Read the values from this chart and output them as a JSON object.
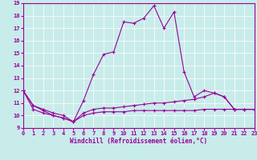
{
  "background_color": "#c8ecea",
  "line_color": "#990099",
  "xlabel": "Windchill (Refroidissement éolien,°C)",
  "xlim": [
    0,
    23
  ],
  "ylim": [
    9,
    19
  ],
  "xticks": [
    0,
    1,
    2,
    3,
    4,
    5,
    6,
    7,
    8,
    9,
    10,
    11,
    12,
    13,
    14,
    15,
    16,
    17,
    18,
    19,
    20,
    21,
    22,
    23
  ],
  "yticks": [
    9,
    10,
    11,
    12,
    13,
    14,
    15,
    16,
    17,
    18,
    19
  ],
  "series1_y": [
    12,
    10.8,
    10.5,
    10.2,
    10.0,
    9.5,
    11.2,
    13.3,
    14.9,
    15.1,
    17.5,
    17.4,
    17.8,
    18.8,
    17.0,
    18.3,
    13.5,
    11.5,
    12.0,
    11.8,
    11.5,
    10.5,
    10.5,
    10.5
  ],
  "series2_y": [
    12,
    10.8,
    10.4,
    10.0,
    9.8,
    9.5,
    10.2,
    10.5,
    10.6,
    10.6,
    10.7,
    10.8,
    10.9,
    11.0,
    11.0,
    11.1,
    11.2,
    11.3,
    11.5,
    11.8,
    11.5,
    10.5,
    10.5,
    10.5
  ],
  "series3_y": [
    12,
    10.5,
    10.2,
    10.0,
    9.8,
    9.5,
    10.0,
    10.2,
    10.3,
    10.3,
    10.3,
    10.4,
    10.4,
    10.4,
    10.4,
    10.4,
    10.4,
    10.4,
    10.5,
    10.5,
    10.5,
    10.5,
    10.5,
    10.5
  ]
}
